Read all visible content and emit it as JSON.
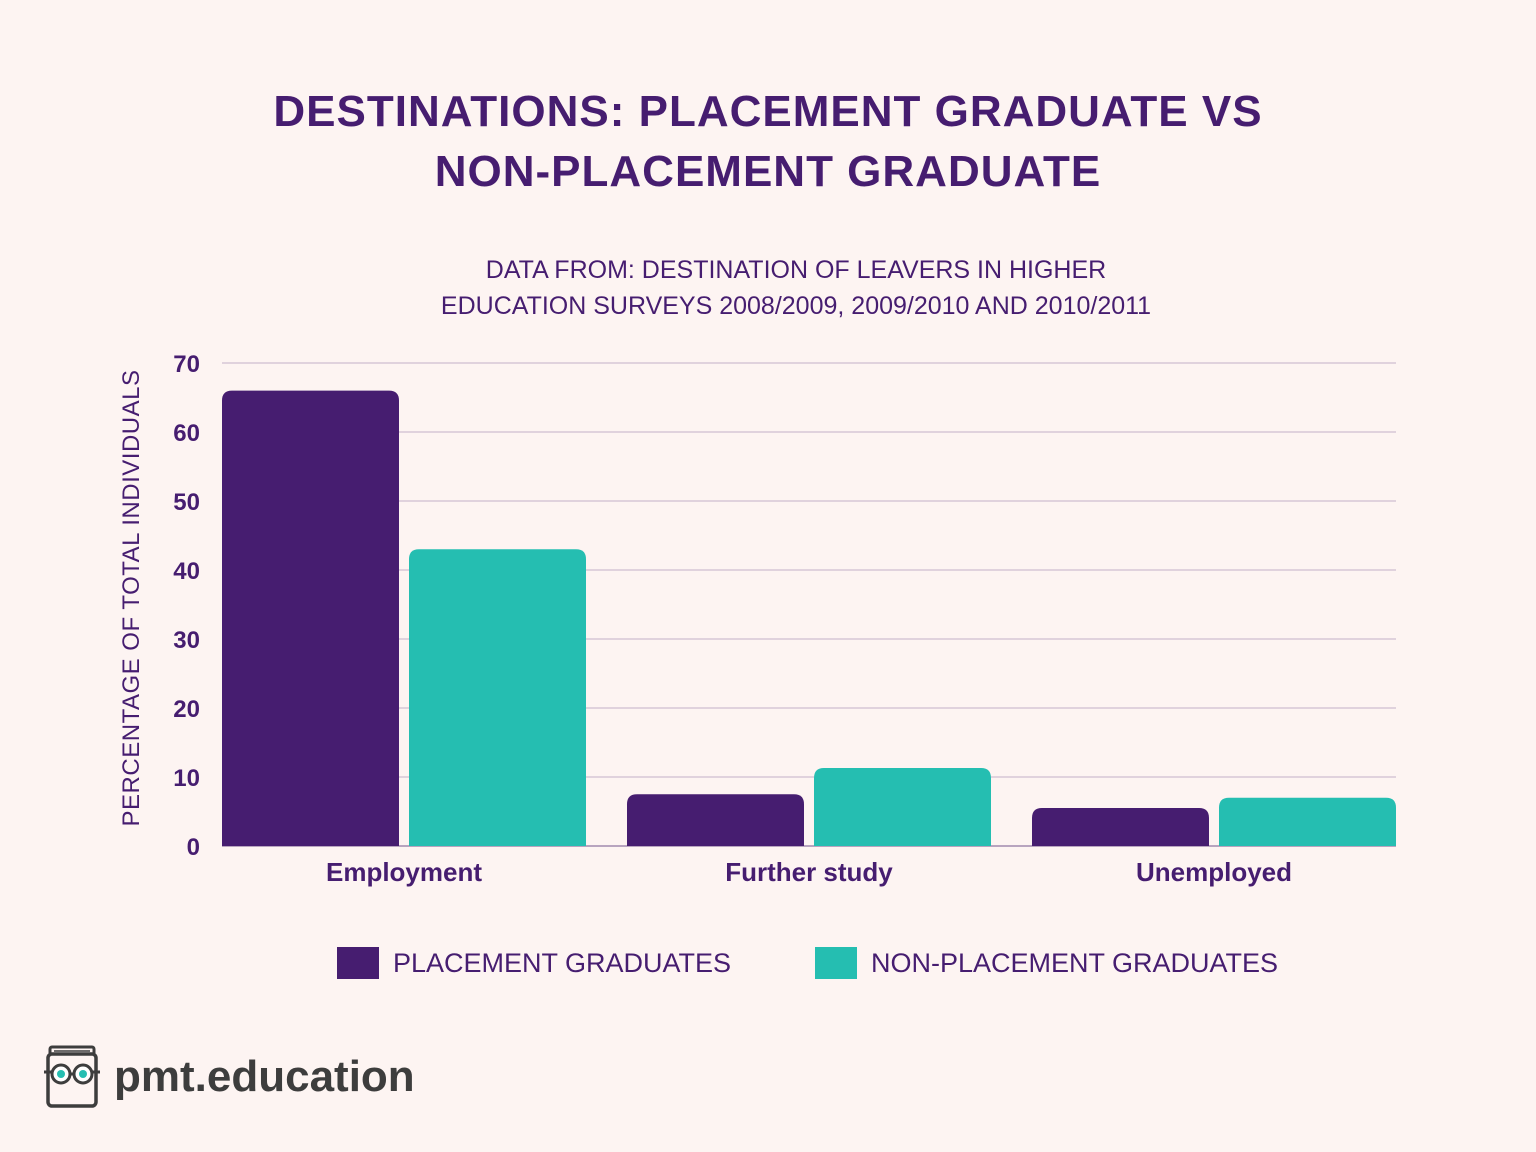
{
  "colors": {
    "background": "#fdf4f2",
    "text": "#461d70",
    "placement": "#461d70",
    "non_placement": "#25beb1",
    "grid": "#d6c6d6",
    "brand_text": "#3d3d3d"
  },
  "brand": {
    "icon": "book-with-glasses-icon",
    "text": "pmt.education"
  },
  "chart_data": {
    "type": "bar",
    "title_lines": [
      "DESTINATIONS: PLACEMENT GRADUATE VS",
      "NON-PLACEMENT GRADUATE"
    ],
    "subtitle_lines": [
      "DATA FROM: DESTINATION OF LEAVERS IN HIGHER",
      "EDUCATION SURVEYS 2008/2009, 2009/2010 AND 2010/2011"
    ],
    "xlabel": "",
    "ylabel": "PERCENTAGE OF TOTAL INDIVIDUALS",
    "categories": [
      "Employment",
      "Further study",
      "Unemployed"
    ],
    "series": [
      {
        "name": "PLACEMENT GRADUATES",
        "values": [
          66,
          7.5,
          5.5
        ]
      },
      {
        "name": "NON-PLACEMENT GRADUATES",
        "values": [
          43,
          11.3,
          7
        ]
      }
    ],
    "ylim": [
      0,
      70
    ],
    "yticks": [
      0,
      10,
      20,
      30,
      40,
      50,
      60,
      70
    ],
    "grid": true,
    "legend_position": "bottom"
  }
}
